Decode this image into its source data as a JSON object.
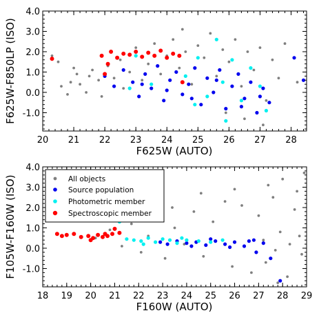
{
  "colors": {
    "all_objects": "#7f7f7f",
    "source_population": "#0000ee",
    "photometric_member": "#00f0f0",
    "spectroscopic_member": "#ff0000"
  },
  "chart_data": [
    {
      "type": "scatter",
      "xlabel": "F625W (AUTO)",
      "ylabel": "F625W-F850LP (ISO)",
      "xlim": [
        20,
        28.5
      ],
      "ylim": [
        -1.9,
        4.0
      ],
      "xticks": [
        "20",
        "21",
        "22",
        "23",
        "24",
        "25",
        "26",
        "27",
        "28"
      ],
      "yticks": [
        "-1.0",
        "0.0",
        "1.0",
        "2.0",
        "3.0",
        "4.0"
      ],
      "series": [
        {
          "key": "all_objects",
          "points": [
            [
              20.3,
              1.8
            ],
            [
              20.5,
              1.5
            ],
            [
              20.6,
              0.3
            ],
            [
              20.8,
              -0.1
            ],
            [
              20.9,
              0.5
            ],
            [
              21.0,
              1.2
            ],
            [
              21.1,
              0.9
            ],
            [
              21.2,
              0.4
            ],
            [
              21.4,
              0.0
            ],
            [
              21.5,
              0.8
            ],
            [
              21.6,
              1.1
            ],
            [
              21.8,
              0.6
            ],
            [
              21.9,
              -0.2
            ],
            [
              22.1,
              1.3
            ],
            [
              22.3,
              0.7
            ],
            [
              22.5,
              1.6
            ],
            [
              22.6,
              0.2
            ],
            [
              22.8,
              1.0
            ],
            [
              23.0,
              2.2
            ],
            [
              23.2,
              0.6
            ],
            [
              23.4,
              1.4
            ],
            [
              23.6,
              2.4
            ],
            [
              23.8,
              0.9
            ],
            [
              24.0,
              1.8
            ],
            [
              24.2,
              2.6
            ],
            [
              24.4,
              1.2
            ],
            [
              24.6,
              2.0
            ],
            [
              24.8,
              0.4
            ],
            [
              25.0,
              2.3
            ],
            [
              25.2,
              1.7
            ],
            [
              25.4,
              2.9
            ],
            [
              25.6,
              0.8
            ],
            [
              25.8,
              2.1
            ],
            [
              26.0,
              1.5
            ],
            [
              26.2,
              2.6
            ],
            [
              26.4,
              0.3
            ],
            [
              26.6,
              2.0
            ],
            [
              26.8,
              1.1
            ],
            [
              27.0,
              2.2
            ],
            [
              27.2,
              -0.4
            ],
            [
              27.4,
              1.6
            ],
            [
              27.6,
              0.7
            ],
            [
              27.8,
              2.4
            ],
            [
              28.2,
              0.5
            ],
            [
              24.5,
              3.1
            ],
            [
              26.5,
              -1.3
            ],
            [
              27.1,
              -1.6
            ],
            [
              25.9,
              -1.0
            ]
          ]
        },
        {
          "key": "source_population",
          "points": [
            [
              22.0,
              0.8
            ],
            [
              22.3,
              0.3
            ],
            [
              22.6,
              1.1
            ],
            [
              22.9,
              0.5
            ],
            [
              23.1,
              -0.2
            ],
            [
              23.3,
              0.9
            ],
            [
              23.5,
              0.2
            ],
            [
              23.7,
              1.3
            ],
            [
              23.9,
              -0.4
            ],
            [
              24.1,
              0.6
            ],
            [
              24.3,
              1.0
            ],
            [
              24.5,
              -0.1
            ],
            [
              24.7,
              0.4
            ],
            [
              24.9,
              1.2
            ],
            [
              25.1,
              -0.6
            ],
            [
              25.3,
              0.7
            ],
            [
              25.5,
              0.0
            ],
            [
              25.7,
              1.1
            ],
            [
              25.9,
              -0.8
            ],
            [
              26.1,
              0.3
            ],
            [
              26.3,
              0.9
            ],
            [
              26.5,
              -0.3
            ],
            [
              26.7,
              0.5
            ],
            [
              26.9,
              -1.0
            ],
            [
              27.1,
              0.2
            ],
            [
              27.3,
              -0.5
            ],
            [
              23.2,
              0.4
            ],
            [
              24.0,
              0.1
            ],
            [
              24.8,
              -0.3
            ],
            [
              25.6,
              0.6
            ],
            [
              26.4,
              -0.7
            ],
            [
              27.0,
              -0.2
            ],
            [
              28.4,
              0.6
            ],
            [
              28.1,
              1.7
            ]
          ]
        },
        {
          "key": "photometric_member",
          "points": [
            [
              23.0,
              1.8
            ],
            [
              23.5,
              0.4
            ],
            [
              24.2,
              1.9
            ],
            [
              24.6,
              0.8
            ],
            [
              25.0,
              1.7
            ],
            [
              25.3,
              -0.2
            ],
            [
              25.6,
              2.6
            ],
            [
              25.8,
              0.5
            ],
            [
              26.1,
              1.6
            ],
            [
              26.4,
              -0.4
            ],
            [
              26.7,
              1.2
            ],
            [
              27.0,
              0.3
            ],
            [
              27.2,
              -0.9
            ],
            [
              22.8,
              0.2
            ],
            [
              24.9,
              -0.6
            ],
            [
              25.9,
              -1.4
            ]
          ]
        },
        {
          "key": "spectroscopic_member",
          "points": [
            [
              20.3,
              1.65
            ],
            [
              21.9,
              1.8
            ],
            [
              22.1,
              1.4
            ],
            [
              22.2,
              2.0
            ],
            [
              22.4,
              1.7
            ],
            [
              22.6,
              1.9
            ],
            [
              22.8,
              1.85
            ],
            [
              23.0,
              2.0
            ],
            [
              23.2,
              1.75
            ],
            [
              23.4,
              1.95
            ],
            [
              23.6,
              1.8
            ],
            [
              23.8,
              2.05
            ],
            [
              24.0,
              1.7
            ],
            [
              24.2,
              1.9
            ],
            [
              24.4,
              1.8
            ],
            [
              22.0,
              0.9
            ],
            [
              24.5,
              0.5
            ]
          ]
        }
      ]
    },
    {
      "type": "scatter",
      "xlabel": "F160W (AUTO)",
      "ylabel": "F105W-F160W (ISO)",
      "xlim": [
        18,
        29
      ],
      "ylim": [
        -1.9,
        4.0
      ],
      "xticks": [
        "18",
        "19",
        "20",
        "21",
        "22",
        "23",
        "24",
        "25",
        "26",
        "27",
        "28",
        "29"
      ],
      "yticks": [
        "-1.0",
        "0.0",
        "1.0",
        "2.0",
        "3.0",
        "4.0"
      ],
      "legend": {
        "placement": "top-left",
        "entries": [
          {
            "key": "all_objects",
            "label": "All objects"
          },
          {
            "key": "source_population",
            "label": "Source population"
          },
          {
            "key": "photometric_member",
            "label": "Photometric member"
          },
          {
            "key": "spectroscopic_member",
            "label": "Spectroscopic member"
          }
        ]
      },
      "series": [
        {
          "key": "all_objects",
          "points": [
            [
              20.2,
              0.5
            ],
            [
              20.8,
              0.9
            ],
            [
              21.3,
              0.1
            ],
            [
              21.7,
              1.2
            ],
            [
              22.1,
              -0.2
            ],
            [
              22.4,
              0.6
            ],
            [
              22.8,
              1.5
            ],
            [
              23.1,
              -0.5
            ],
            [
              23.5,
              1.0
            ],
            [
              23.9,
              0.2
            ],
            [
              24.3,
              1.8
            ],
            [
              24.7,
              -0.4
            ],
            [
              25.1,
              1.3
            ],
            [
              25.5,
              0.4
            ],
            [
              25.9,
              -0.9
            ],
            [
              26.3,
              2.1
            ],
            [
              26.7,
              -1.2
            ],
            [
              27.0,
              1.6
            ],
            [
              27.3,
              -0.7
            ],
            [
              27.6,
              2.5
            ],
            [
              27.9,
              0.8
            ],
            [
              28.2,
              -1.4
            ],
            [
              28.5,
              1.9
            ],
            [
              28.8,
              -0.3
            ],
            [
              27.4,
              3.1
            ],
            [
              28.0,
              3.4
            ],
            [
              28.6,
              2.8
            ],
            [
              28.9,
              3.7
            ],
            [
              27.8,
              -1.7
            ],
            [
              26.0,
              2.9
            ],
            [
              25.6,
              2.3
            ],
            [
              24.6,
              2.7
            ],
            [
              23.4,
              2.0
            ],
            [
              22.6,
              2.4
            ],
            [
              28.3,
              0.2
            ],
            [
              27.7,
              -0.1
            ],
            [
              28.7,
              0.6
            ],
            [
              27.2,
              0.4
            ]
          ]
        },
        {
          "key": "source_population",
          "points": [
            [
              22.9,
              0.3
            ],
            [
              23.2,
              0.2
            ],
            [
              23.6,
              0.35
            ],
            [
              24.0,
              0.25
            ],
            [
              24.4,
              0.3
            ],
            [
              24.8,
              0.15
            ],
            [
              25.2,
              0.35
            ],
            [
              25.6,
              0.2
            ],
            [
              26.0,
              0.3
            ],
            [
              26.4,
              0.1
            ],
            [
              26.8,
              0.4
            ],
            [
              27.2,
              0.25
            ],
            [
              24.2,
              0.1
            ],
            [
              25.0,
              0.45
            ],
            [
              25.8,
              0.05
            ],
            [
              26.6,
              0.35
            ],
            [
              27.5,
              -0.5
            ],
            [
              27.9,
              -1.6
            ],
            [
              26.9,
              -0.2
            ]
          ]
        },
        {
          "key": "photometric_member",
          "points": [
            [
              21.2,
              1.3
            ],
            [
              21.5,
              0.45
            ],
            [
              21.8,
              0.4
            ],
            [
              22.1,
              0.35
            ],
            [
              22.4,
              0.5
            ],
            [
              22.7,
              0.3
            ],
            [
              23.0,
              0.45
            ],
            [
              23.3,
              0.4
            ],
            [
              23.6,
              0.25
            ],
            [
              24.0,
              0.4
            ],
            [
              24.5,
              0.35
            ],
            [
              25.0,
              0.3
            ],
            [
              25.5,
              0.4
            ],
            [
              22.2,
              0.2
            ],
            [
              23.8,
              0.5
            ]
          ]
        },
        {
          "key": "spectroscopic_member",
          "points": [
            [
              18.6,
              0.7
            ],
            [
              18.8,
              0.6
            ],
            [
              19.0,
              0.65
            ],
            [
              19.3,
              0.7
            ],
            [
              19.6,
              0.55
            ],
            [
              19.9,
              0.6
            ],
            [
              20.1,
              0.5
            ],
            [
              20.3,
              0.65
            ],
            [
              20.5,
              0.55
            ],
            [
              20.7,
              0.6
            ],
            [
              20.9,
              0.7
            ],
            [
              21.0,
              0.95
            ],
            [
              21.2,
              0.75
            ],
            [
              20.0,
              0.4
            ],
            [
              20.6,
              0.7
            ]
          ]
        }
      ]
    }
  ]
}
